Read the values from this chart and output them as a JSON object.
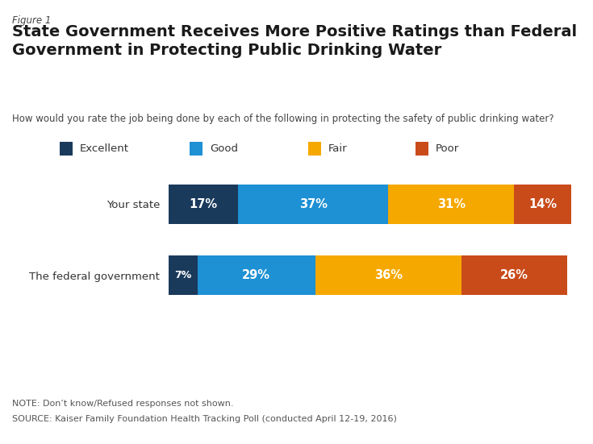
{
  "figure_label": "Figure 1",
  "title": "State Government Receives More Positive Ratings than Federal\nGovernment in Protecting Public Drinking Water",
  "subtitle": "How would you rate the job being done by each of the following in protecting the safety of public drinking water?",
  "categories": [
    "Your state",
    "The federal government"
  ],
  "segments": [
    "Excellent",
    "Good",
    "Fair",
    "Poor"
  ],
  "values": [
    [
      17,
      37,
      31,
      14
    ],
    [
      7,
      29,
      36,
      26
    ]
  ],
  "colors": [
    "#1a3a5c",
    "#1e90d4",
    "#f5a800",
    "#c94b1a"
  ],
  "legend_labels": [
    "Excellent",
    "Good",
    "Fair",
    "Poor"
  ],
  "note": "NOTE: Don’t know/Refused responses not shown.",
  "source": "SOURCE: Kaiser Family Foundation Health Tracking Poll (conducted April 12-19, 2016)",
  "background_color": "#ffffff",
  "bar_height": 0.55,
  "text_color_white": "#ffffff",
  "title_color": "#1a1a1a",
  "label_color": "#333333"
}
